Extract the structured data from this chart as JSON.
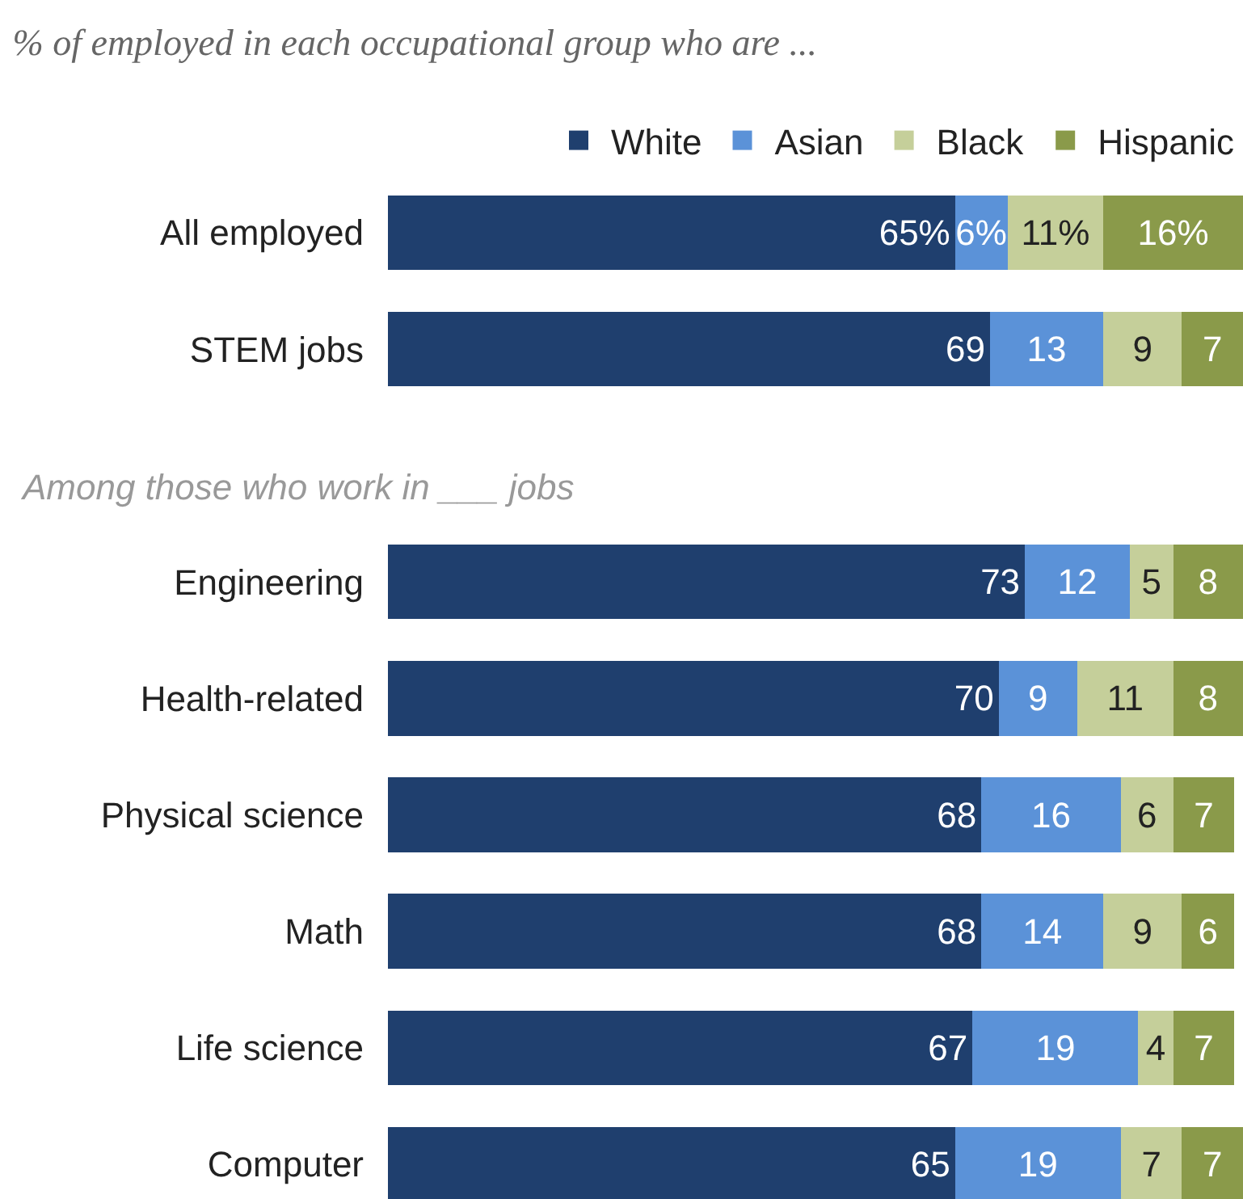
{
  "chart_data": {
    "type": "bar",
    "orientation": "horizontal",
    "stacked": true,
    "title": "% of employed in each occupational group who are ...",
    "categories": [
      "All employed",
      "STEM jobs",
      "Engineering",
      "Health-related",
      "Physical science",
      "Math",
      "Life science",
      "Computer"
    ],
    "series": [
      {
        "name": "White",
        "color": "#1f3f6e",
        "values": [
          65,
          69,
          73,
          70,
          68,
          68,
          67,
          65
        ],
        "value_labels": [
          "65%",
          "69",
          "73",
          "70",
          "68",
          "68",
          "67",
          "65"
        ]
      },
      {
        "name": "Asian",
        "color": "#5b92d8",
        "values": [
          6,
          13,
          12,
          9,
          16,
          14,
          19,
          19
        ],
        "value_labels": [
          "6%",
          "13",
          "12",
          "9",
          "16",
          "14",
          "19",
          "19"
        ]
      },
      {
        "name": "Black",
        "color": "#c5cf9a",
        "values": [
          11,
          9,
          5,
          11,
          6,
          9,
          4,
          7
        ],
        "value_labels": [
          "11%",
          "9",
          "5",
          "11",
          "6",
          "9",
          "4",
          "7"
        ]
      },
      {
        "name": "Hispanic",
        "color": "#8a9a4a",
        "values": [
          16,
          7,
          8,
          8,
          7,
          6,
          7,
          7
        ],
        "value_labels": [
          "16%",
          "7",
          "8",
          "8",
          "7",
          "6",
          "7",
          "7"
        ]
      }
    ],
    "annotations": [
      "Among those who work in ___ jobs"
    ],
    "legend": "top right"
  }
}
